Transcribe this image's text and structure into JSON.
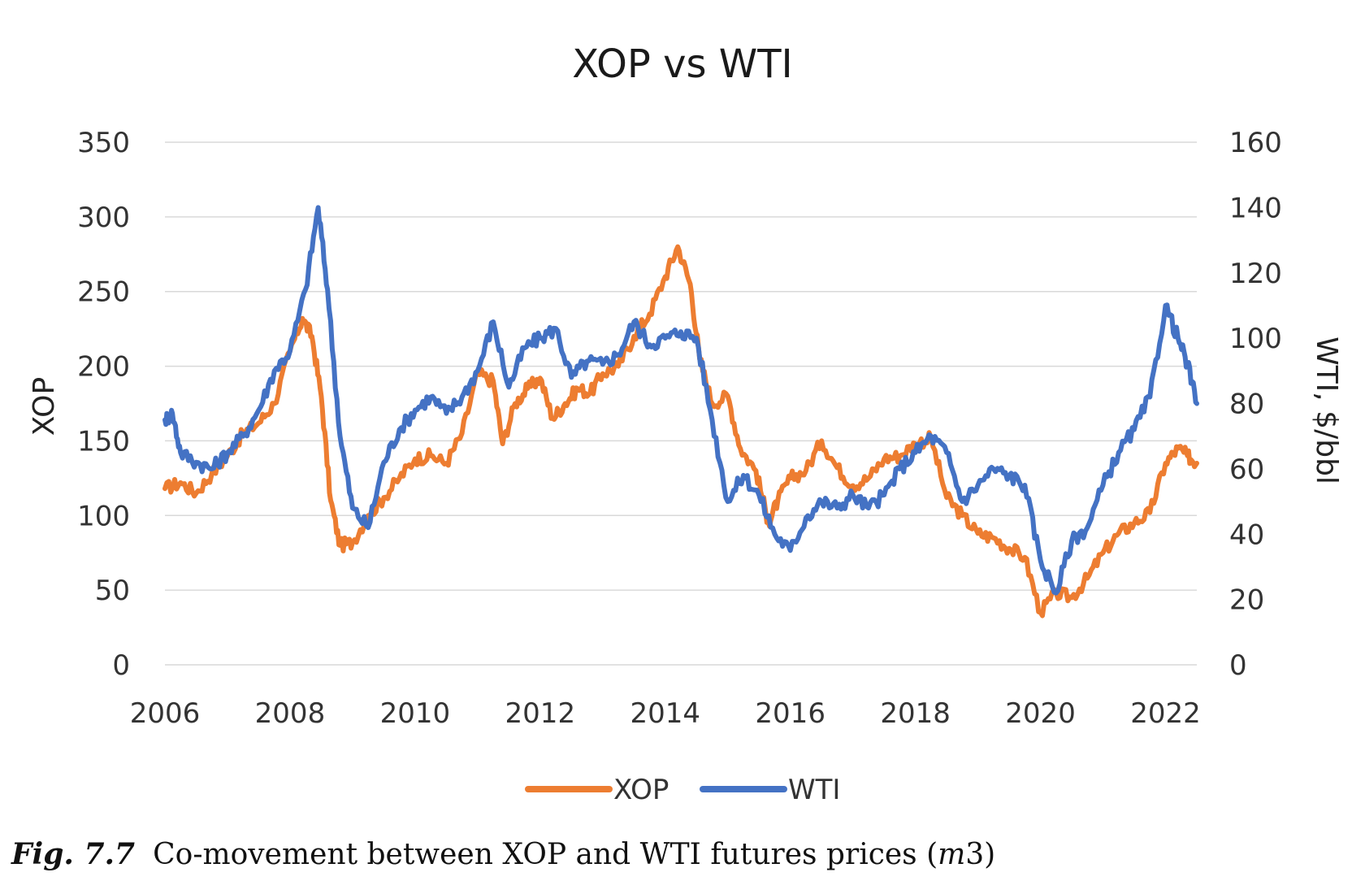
{
  "chart_data": {
    "type": "line",
    "title": "XOP vs WTI",
    "ylabel": "XOP",
    "y2label": "WTI, $/bbl",
    "xlim": [
      2006,
      2022.5
    ],
    "ylim": [
      0,
      350
    ],
    "y2lim": [
      0,
      160
    ],
    "x_ticks": [
      "2006",
      "2008",
      "2010",
      "2012",
      "2014",
      "2016",
      "2018",
      "2020",
      "2022"
    ],
    "y_ticks": [
      "0",
      "50",
      "100",
      "150",
      "200",
      "250",
      "300",
      "350"
    ],
    "y2_ticks": [
      "0",
      "20",
      "40",
      "60",
      "80",
      "100",
      "120",
      "140",
      "160"
    ],
    "grid": true,
    "legend": "bottom",
    "series": [
      {
        "name": "XOP",
        "axis": "left",
        "color": "#ED7D31",
        "points": [
          [
            2006.0,
            118
          ],
          [
            2006.25,
            122
          ],
          [
            2006.5,
            115
          ],
          [
            2006.75,
            128
          ],
          [
            2007.0,
            140
          ],
          [
            2007.25,
            155
          ],
          [
            2007.5,
            162
          ],
          [
            2007.75,
            175
          ],
          [
            2008.0,
            210
          ],
          [
            2008.2,
            232
          ],
          [
            2008.35,
            220
          ],
          [
            2008.5,
            180
          ],
          [
            2008.65,
            110
          ],
          [
            2008.8,
            80
          ],
          [
            2009.0,
            82
          ],
          [
            2009.25,
            100
          ],
          [
            2009.5,
            112
          ],
          [
            2009.75,
            125
          ],
          [
            2010.0,
            138
          ],
          [
            2010.25,
            140
          ],
          [
            2010.5,
            135
          ],
          [
            2010.75,
            155
          ],
          [
            2011.0,
            195
          ],
          [
            2011.25,
            190
          ],
          [
            2011.4,
            148
          ],
          [
            2011.6,
            175
          ],
          [
            2011.8,
            185
          ],
          [
            2012.0,
            192
          ],
          [
            2012.2,
            165
          ],
          [
            2012.4,
            175
          ],
          [
            2012.6,
            185
          ],
          [
            2012.8,
            182
          ],
          [
            2013.0,
            195
          ],
          [
            2013.25,
            200
          ],
          [
            2013.5,
            220
          ],
          [
            2013.75,
            235
          ],
          [
            2014.0,
            260
          ],
          [
            2014.2,
            280
          ],
          [
            2014.4,
            255
          ],
          [
            2014.55,
            205
          ],
          [
            2014.75,
            175
          ],
          [
            2015.0,
            180
          ],
          [
            2015.2,
            145
          ],
          [
            2015.45,
            130
          ],
          [
            2015.65,
            95
          ],
          [
            2015.8,
            110
          ],
          [
            2016.0,
            125
          ],
          [
            2016.25,
            130
          ],
          [
            2016.5,
            150
          ],
          [
            2016.75,
            132
          ],
          [
            2017.0,
            120
          ],
          [
            2017.25,
            125
          ],
          [
            2017.5,
            138
          ],
          [
            2017.75,
            140
          ],
          [
            2018.0,
            148
          ],
          [
            2018.25,
            152
          ],
          [
            2018.5,
            112
          ],
          [
            2018.75,
            100
          ],
          [
            2019.0,
            88
          ],
          [
            2019.25,
            85
          ],
          [
            2019.5,
            78
          ],
          [
            2019.75,
            72
          ],
          [
            2020.0,
            35
          ],
          [
            2020.25,
            48
          ],
          [
            2020.5,
            45
          ],
          [
            2020.75,
            58
          ],
          [
            2021.0,
            75
          ],
          [
            2021.25,
            88
          ],
          [
            2021.5,
            95
          ],
          [
            2021.75,
            102
          ],
          [
            2022.0,
            135
          ],
          [
            2022.2,
            145
          ],
          [
            2022.35,
            140
          ],
          [
            2022.5,
            135
          ]
        ]
      },
      {
        "name": "WTI",
        "axis": "right",
        "color": "#4472C4",
        "points": [
          [
            2006.0,
            75
          ],
          [
            2006.12,
            77
          ],
          [
            2006.25,
            65
          ],
          [
            2006.5,
            62
          ],
          [
            2006.75,
            60
          ],
          [
            2007.0,
            65
          ],
          [
            2007.25,
            70
          ],
          [
            2007.5,
            78
          ],
          [
            2007.75,
            90
          ],
          [
            2008.0,
            96
          ],
          [
            2008.25,
            115
          ],
          [
            2008.45,
            140
          ],
          [
            2008.6,
            115
          ],
          [
            2008.8,
            70
          ],
          [
            2009.0,
            48
          ],
          [
            2009.25,
            42
          ],
          [
            2009.5,
            62
          ],
          [
            2009.75,
            72
          ],
          [
            2010.0,
            78
          ],
          [
            2010.25,
            82
          ],
          [
            2010.5,
            77
          ],
          [
            2010.75,
            82
          ],
          [
            2011.0,
            90
          ],
          [
            2011.25,
            105
          ],
          [
            2011.5,
            85
          ],
          [
            2011.75,
            97
          ],
          [
            2012.0,
            100
          ],
          [
            2012.25,
            103
          ],
          [
            2012.5,
            88
          ],
          [
            2012.75,
            93
          ],
          [
            2013.0,
            92
          ],
          [
            2013.25,
            95
          ],
          [
            2013.5,
            105
          ],
          [
            2013.75,
            98
          ],
          [
            2014.0,
            100
          ],
          [
            2014.25,
            102
          ],
          [
            2014.5,
            100
          ],
          [
            2014.75,
            75
          ],
          [
            2015.0,
            50
          ],
          [
            2015.25,
            58
          ],
          [
            2015.5,
            52
          ],
          [
            2015.75,
            40
          ],
          [
            2016.0,
            35
          ],
          [
            2016.25,
            45
          ],
          [
            2016.5,
            50
          ],
          [
            2016.75,
            48
          ],
          [
            2017.0,
            52
          ],
          [
            2017.25,
            48
          ],
          [
            2017.5,
            52
          ],
          [
            2017.75,
            60
          ],
          [
            2018.0,
            65
          ],
          [
            2018.25,
            70
          ],
          [
            2018.5,
            65
          ],
          [
            2018.75,
            50
          ],
          [
            2019.0,
            55
          ],
          [
            2019.25,
            60
          ],
          [
            2019.5,
            58
          ],
          [
            2019.75,
            55
          ],
          [
            2020.0,
            32
          ],
          [
            2020.25,
            22
          ],
          [
            2020.5,
            38
          ],
          [
            2020.75,
            42
          ],
          [
            2021.0,
            55
          ],
          [
            2021.25,
            65
          ],
          [
            2021.5,
            72
          ],
          [
            2021.75,
            82
          ],
          [
            2022.0,
            110
          ],
          [
            2022.2,
            100
          ],
          [
            2022.35,
            92
          ],
          [
            2022.5,
            80
          ]
        ]
      }
    ]
  },
  "caption": {
    "fig_label": "Fig. 7.7",
    "text_before": "Co-movement between XOP and WTI futures prices (",
    "text_em": "m",
    "text_after": "3)"
  }
}
